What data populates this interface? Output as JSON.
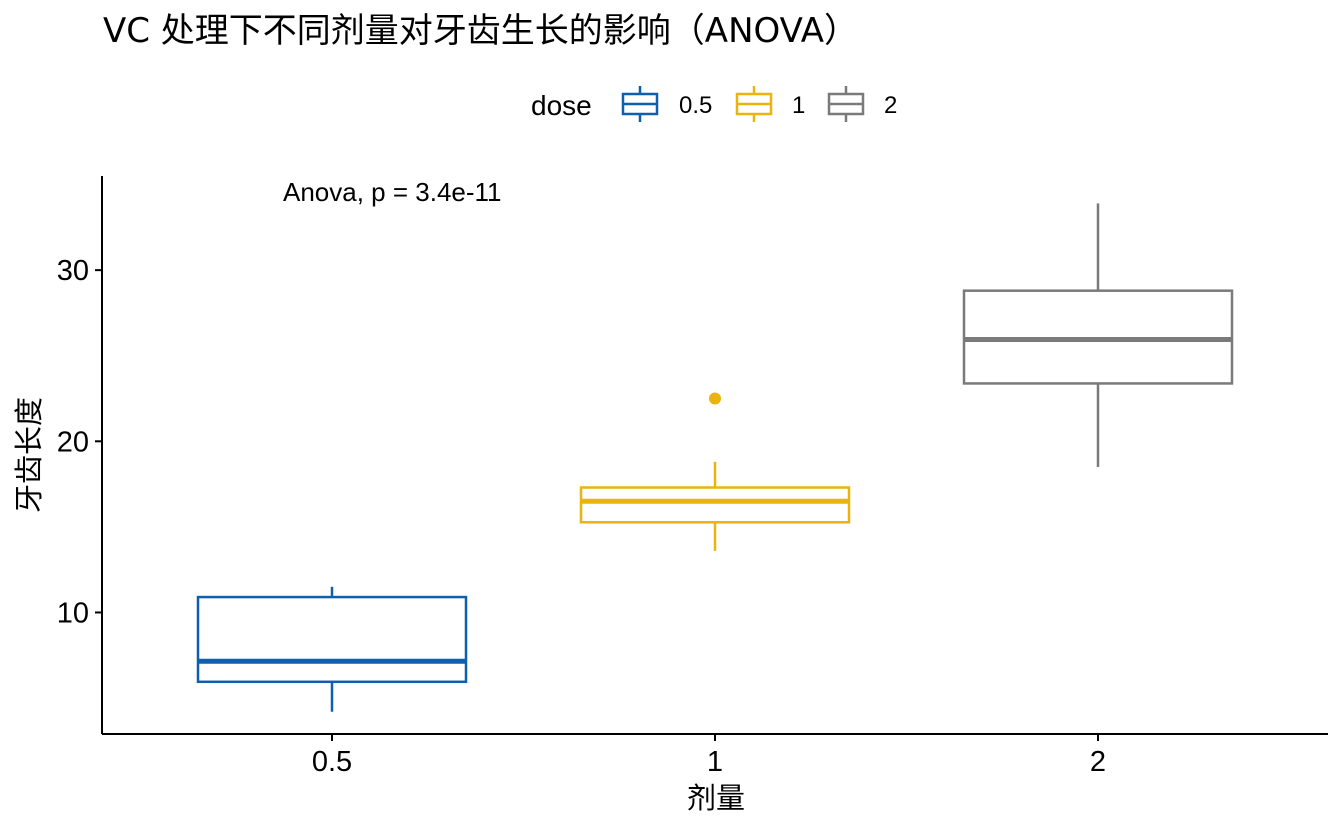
{
  "chart_data": {
    "type": "box",
    "title": "VC 处理下不同剂量对牙齿生长的影响（ANOVA）",
    "xlabel": "剂量",
    "ylabel": "牙齿长度",
    "annotation": "Anova, p = 3.4e-11",
    "legend": {
      "title": "dose",
      "position": "top",
      "entries": [
        {
          "label": "0.5",
          "color": "#0F5FAF"
        },
        {
          "label": "1",
          "color": "#EBB30E"
        },
        {
          "label": "2",
          "color": "#7A7A7A"
        }
      ]
    },
    "categories": [
      "0.5",
      "1",
      "2"
    ],
    "y_ticks": [
      10,
      20,
      30
    ],
    "y_tick_labels": [
      "10",
      "20",
      "30"
    ],
    "ylim": [
      2.9,
      35.5
    ],
    "boxes": [
      {
        "category": "0.5",
        "min": 4.2,
        "q1": 5.95,
        "median": 7.15,
        "q3": 10.9,
        "max": 11.5,
        "outliers": [],
        "color": "#0F5FAF"
      },
      {
        "category": "1",
        "min": 13.6,
        "q1": 15.27,
        "median": 16.5,
        "q3": 17.3,
        "max": 18.8,
        "outliers": [
          22.5
        ],
        "color": "#EBB30E"
      },
      {
        "category": "2",
        "min": 18.5,
        "q1": 23.38,
        "median": 25.95,
        "q3": 28.8,
        "max": 33.9,
        "outliers": [],
        "color": "#7A7A7A"
      }
    ]
  }
}
